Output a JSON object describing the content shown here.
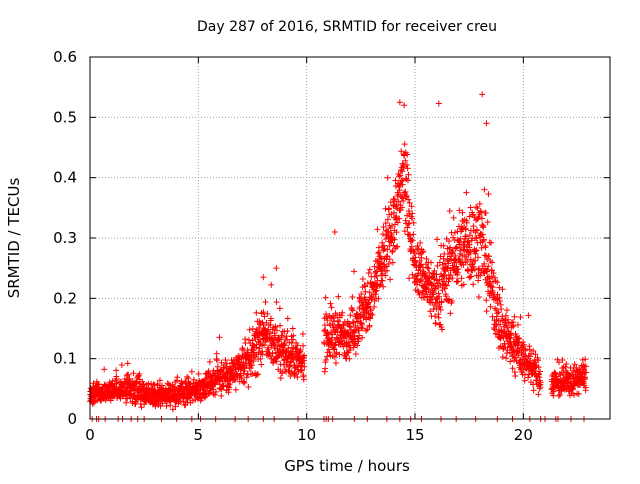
{
  "chart_data": {
    "type": "scatter",
    "title": "Day 287 of 2016, SRMTID for receiver creu",
    "xlabel": "GPS time / hours",
    "ylabel": "SRMTID / TECUs",
    "xlim": [
      0,
      24
    ],
    "ylim": [
      0,
      0.6
    ],
    "x_ticks": [
      {
        "value": 0,
        "label": "0"
      },
      {
        "value": 5,
        "label": "5"
      },
      {
        "value": 10,
        "label": "10"
      },
      {
        "value": 15,
        "label": "15"
      },
      {
        "value": 20,
        "label": "20"
      }
    ],
    "y_ticks": [
      {
        "value": 0,
        "label": "0"
      },
      {
        "value": 0.1,
        "label": "0.1"
      },
      {
        "value": 0.2,
        "label": "0.2"
      },
      {
        "value": 0.3,
        "label": "0.3"
      },
      {
        "value": 0.4,
        "label": "0.4"
      },
      {
        "value": 0.5,
        "label": "0.5"
      },
      {
        "value": 0.6,
        "label": "0.6"
      }
    ],
    "grid": true,
    "marker": "+",
    "marker_color": "#ff0000",
    "series": [
      {
        "name": "SRMTID",
        "approx_profile": [
          {
            "x": 0.0,
            "y": 0.04,
            "spread": 0.015
          },
          {
            "x": 1.0,
            "y": 0.045,
            "spread": 0.02
          },
          {
            "x": 2.0,
            "y": 0.05,
            "spread": 0.025
          },
          {
            "x": 3.0,
            "y": 0.04,
            "spread": 0.02
          },
          {
            "x": 4.0,
            "y": 0.04,
            "spread": 0.02
          },
          {
            "x": 5.0,
            "y": 0.05,
            "spread": 0.02
          },
          {
            "x": 6.0,
            "y": 0.07,
            "spread": 0.03
          },
          {
            "x": 7.0,
            "y": 0.08,
            "spread": 0.035
          },
          {
            "x": 8.0,
            "y": 0.14,
            "spread": 0.05
          },
          {
            "x": 9.0,
            "y": 0.11,
            "spread": 0.04
          },
          {
            "x": 9.8,
            "y": 0.09,
            "spread": 0.03
          },
          {
            "x": 11.0,
            "y": 0.14,
            "spread": 0.05
          },
          {
            "x": 12.0,
            "y": 0.14,
            "spread": 0.04
          },
          {
            "x": 13.0,
            "y": 0.2,
            "spread": 0.06
          },
          {
            "x": 14.0,
            "y": 0.32,
            "spread": 0.06
          },
          {
            "x": 14.5,
            "y": 0.4,
            "spread": 0.09
          },
          {
            "x": 15.0,
            "y": 0.26,
            "spread": 0.05
          },
          {
            "x": 16.0,
            "y": 0.2,
            "spread": 0.06
          },
          {
            "x": 17.0,
            "y": 0.28,
            "spread": 0.07
          },
          {
            "x": 18.0,
            "y": 0.3,
            "spread": 0.08
          },
          {
            "x": 19.0,
            "y": 0.15,
            "spread": 0.06
          },
          {
            "x": 20.0,
            "y": 0.1,
            "spread": 0.04
          },
          {
            "x": 21.0,
            "y": 0.06,
            "spread": 0.025
          },
          {
            "x": 22.0,
            "y": 0.06,
            "spread": 0.025
          },
          {
            "x": 22.8,
            "y": 0.07,
            "spread": 0.025
          }
        ],
        "coverage": [
          [
            0.0,
            9.9
          ],
          [
            10.8,
            20.8
          ],
          [
            21.3,
            22.9
          ]
        ],
        "notable_points": [
          {
            "x": 14.3,
            "y": 0.525
          },
          {
            "x": 14.5,
            "y": 0.52
          },
          {
            "x": 16.1,
            "y": 0.523
          },
          {
            "x": 18.1,
            "y": 0.538
          },
          {
            "x": 18.3,
            "y": 0.49
          },
          {
            "x": 8.6,
            "y": 0.25
          },
          {
            "x": 8.0,
            "y": 0.235
          },
          {
            "x": 11.3,
            "y": 0.31
          }
        ],
        "zero_markers_x": [
          0.1,
          0.3,
          0.4,
          0.7,
          1.3,
          1.5,
          1.9,
          2.2,
          2.5,
          3.3,
          4.0,
          4.7,
          5.1,
          5.8,
          6.7,
          7.3,
          8.0,
          8.5,
          9.6,
          10.8,
          10.9,
          11.0,
          11.2,
          12.2,
          12.8,
          13.7,
          14.3,
          14.8,
          15.3,
          16.2,
          16.9,
          17.8,
          18.8,
          19.5,
          20.3,
          20.8,
          21.0,
          21.5,
          21.6,
          22.2,
          22.8
        ]
      }
    ]
  }
}
